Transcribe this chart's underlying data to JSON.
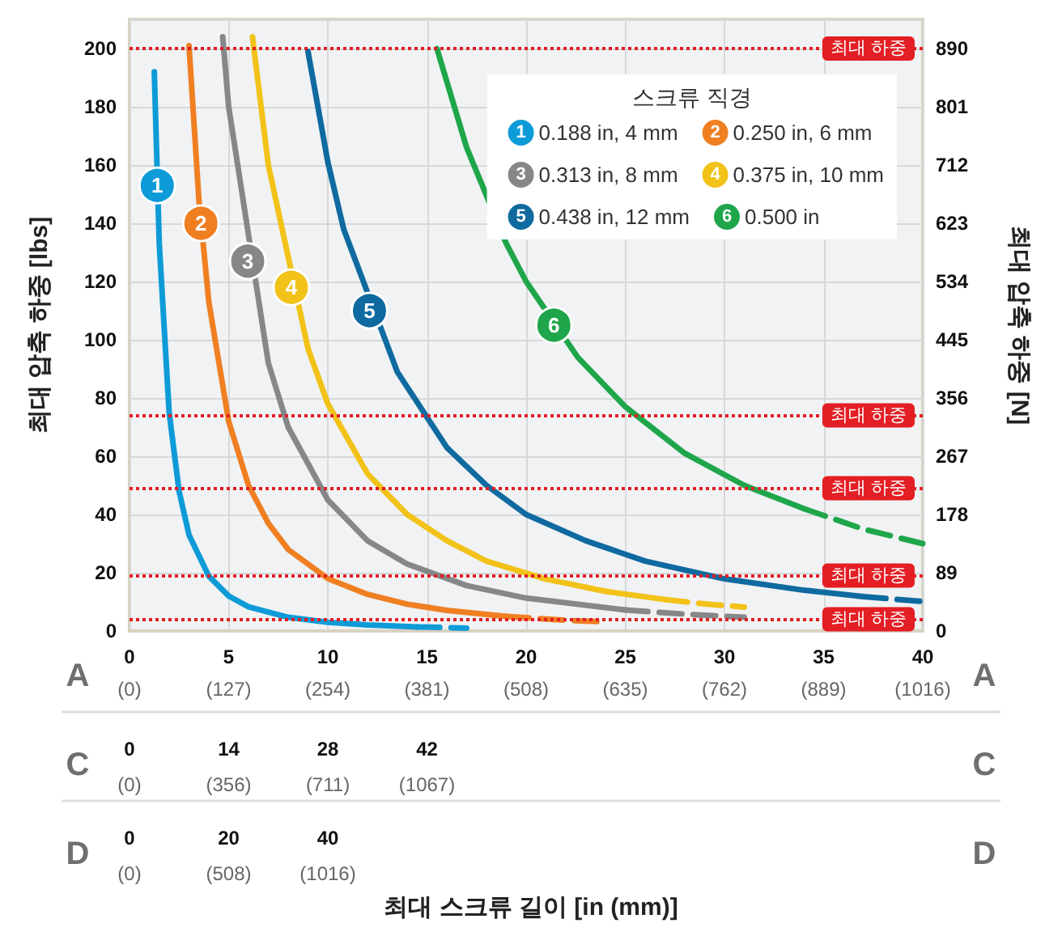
{
  "chart_data": {
    "type": "line",
    "ylabel": "최대 압축 하중 [lbs]",
    "y2label": "최대 압축 하중 [N]",
    "legend_title": "스크류 직경",
    "xlim": [
      0,
      40
    ],
    "xticks": [
      0,
      5,
      10,
      15,
      20,
      25,
      30,
      35,
      40
    ],
    "x2lim": [
      0,
      1016
    ],
    "x2ticks": [
      {
        "value": 0,
        "label": "(0)"
      },
      {
        "value": 127,
        "label": "(127)"
      },
      {
        "value": 254,
        "label": "(254)"
      },
      {
        "value": 381,
        "label": "(381)"
      },
      {
        "value": 508,
        "label": "(508)"
      },
      {
        "value": 635,
        "label": "(635)"
      },
      {
        "value": 762,
        "label": "(762)"
      },
      {
        "value": 889,
        "label": "(889)"
      },
      {
        "value": 1016,
        "label": "(1016)"
      }
    ],
    "ylim": [
      0,
      210
    ],
    "yticks": [
      0,
      20,
      40,
      60,
      80,
      100,
      120,
      140,
      160,
      180,
      200
    ],
    "y2lim": [
      0,
      934.5
    ],
    "y2ticks": [
      0,
      89,
      178,
      267,
      356,
      445,
      534,
      623,
      712,
      801,
      890
    ],
    "grid": true,
    "legend": "top right",
    "marker": "none",
    "series": [
      {
        "name": "0.188 in, 4 mm",
        "color": "#0d9bd8",
        "x": [
          1.25,
          1.5,
          2,
          2.5,
          3,
          4,
          5,
          6,
          8,
          10,
          12,
          14.5
        ],
        "values": [
          192,
          133,
          75,
          48,
          33,
          18.8,
          12,
          8.3,
          4.7,
          3,
          2.1,
          1.4
        ]
      },
      {
        "color": "#0d9bd8",
        "line_style": "dashed",
        "x": [
          14.5,
          17
        ],
        "values": [
          1.4,
          1.0
        ]
      },
      {
        "name": "0.250 in, 6 mm",
        "color": "#f07f22",
        "x": [
          3,
          3.5,
          4,
          5,
          6,
          7,
          8,
          10,
          12,
          14,
          16,
          19
        ],
        "values": [
          201,
          148,
          113,
          72,
          50,
          37,
          28,
          18,
          12.6,
          9.2,
          7.1,
          5.0
        ]
      },
      {
        "color": "#f07f22",
        "line_style": "dashed",
        "x": [
          19,
          22,
          24
        ],
        "values": [
          5.0,
          3.7,
          3.1
        ]
      },
      {
        "name": "0.313 in, 8 mm",
        "color": "#858789",
        "x": [
          4.7,
          5,
          7,
          8,
          10,
          12,
          14,
          17,
          20,
          25
        ],
        "values": [
          204,
          180,
          92,
          70,
          45,
          31,
          23,
          15.6,
          11.3,
          7.2
        ]
      },
      {
        "color": "#858789",
        "line_style": "dashed",
        "x": [
          25,
          28,
          31
        ],
        "values": [
          7.2,
          5.8,
          4.7
        ]
      },
      {
        "name": "0.375 in, 10 mm",
        "color": "#f2c218",
        "x": [
          6.2,
          7,
          9,
          10,
          12,
          14,
          16,
          18,
          21,
          24,
          27
        ],
        "values": [
          204,
          160,
          97,
          78,
          54,
          40,
          31,
          24,
          17.8,
          13.6,
          10.8
        ]
      },
      {
        "color": "#f2c218",
        "line_style": "dashed",
        "x": [
          27,
          29,
          31
        ],
        "values": [
          10.8,
          9.3,
          8.2
        ]
      },
      {
        "name": "0.438 in, 12 mm",
        "color": "#0f6aa0",
        "x": [
          9,
          10,
          10.8,
          13.5,
          16,
          18,
          20,
          23,
          26,
          30,
          34,
          37
        ],
        "values": [
          199,
          161,
          138,
          89,
          63,
          50,
          40,
          31,
          24,
          17.9,
          14,
          11.8
        ]
      },
      {
        "color": "#0f6aa0",
        "line_style": "dashed",
        "x": [
          37,
          40
        ],
        "values": [
          11.8,
          10.1
        ]
      },
      {
        "name": "0.500 in",
        "color": "#1fa64a",
        "x": [
          15.5,
          17,
          19,
          20,
          22.6,
          25,
          28,
          31,
          34
        ],
        "values": [
          200,
          166,
          133,
          120,
          94,
          77,
          61,
          50,
          42
        ]
      },
      {
        "color": "#1fa64a",
        "line_style": "dashed",
        "x": [
          34,
          37,
          40
        ],
        "values": [
          42,
          35,
          30
        ]
      }
    ],
    "ref_lines": [
      {
        "axis": "y",
        "value": 200,
        "label": "최대 하중",
        "color": "#e31e24",
        "line_style": "dotted"
      },
      {
        "axis": "y",
        "value": 74,
        "label": "최대 하중",
        "color": "#e31e24",
        "line_style": "dotted"
      },
      {
        "axis": "y",
        "value": 49,
        "label": "최대 하중",
        "color": "#e31e24",
        "line_style": "dotted"
      },
      {
        "axis": "y",
        "value": 19,
        "label": "최대 하중",
        "color": "#e31e24",
        "line_style": "dotted"
      },
      {
        "axis": "y",
        "value": 4,
        "label": "최대 하중",
        "color": "#e31e24",
        "line_style": "dotted"
      }
    ],
    "annotations": [
      {
        "text": "1",
        "x": 1.4,
        "y": 153
      },
      {
        "text": "2",
        "x": 3.6,
        "y": 140
      },
      {
        "text": "3",
        "x": 5.96,
        "y": 127
      },
      {
        "text": "4",
        "x": 8.16,
        "y": 118
      },
      {
        "text": "5",
        "x": 12.1,
        "y": 110
      },
      {
        "text": "6",
        "x": 21.4,
        "y": 105
      },
      "A",
      "A",
      "C",
      "0",
      "(0)",
      "14",
      "(356)",
      "28",
      "(711)",
      "42",
      "(1067)",
      "C",
      "D",
      "0",
      "(0)",
      "20",
      "(508)",
      "40",
      "(1016)",
      "D",
      "최대 스크류 길이 [in (mm)]"
    ]
  }
}
